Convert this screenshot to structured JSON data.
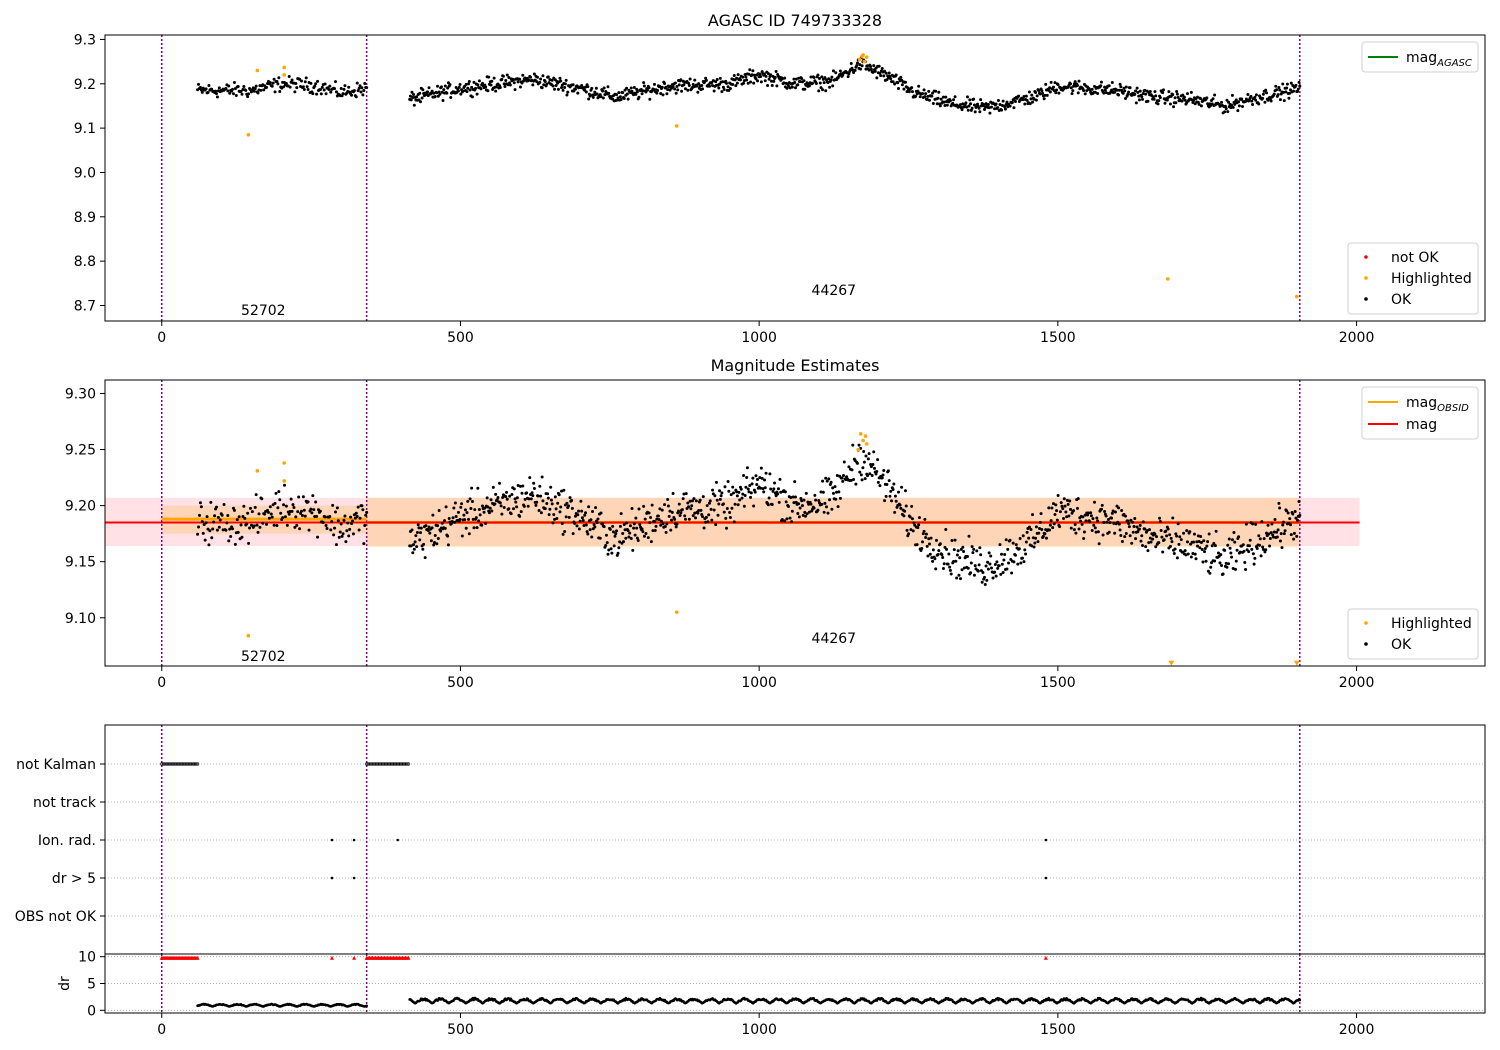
{
  "chart_data": [
    {
      "type": "scatter",
      "title": "AGASC ID 749733328",
      "xlim": [
        -95,
        2215
      ],
      "ylim": [
        8.665,
        9.31
      ],
      "xticks": [
        0,
        500,
        1000,
        1500,
        2000
      ],
      "yticks": [
        8.7,
        8.8,
        8.9,
        9.0,
        9.1,
        9.2,
        9.3
      ],
      "ytick_labels": [
        "8.7",
        "8.8",
        "8.9",
        "9.0",
        "9.1",
        "9.2",
        "9.3"
      ],
      "vlines": [
        0,
        343,
        1905
      ],
      "annotations": [
        {
          "text": "52702",
          "x": 170,
          "y": 8.69
        },
        {
          "text": "44267",
          "x": 1125,
          "y": 8.735
        }
      ],
      "legend_lines": {
        "position": "upper right",
        "entries": [
          {
            "name": "mag_AGASC",
            "base": "mag",
            "sub": "AGASC",
            "color": "#008000"
          }
        ]
      },
      "legend_points": {
        "position": "lower right",
        "entries": [
          {
            "name": "not OK",
            "color": "#ff0000"
          },
          {
            "name": "Highlighted",
            "color": "#ffa500"
          },
          {
            "name": "OK",
            "color": "#000000"
          }
        ]
      },
      "series": [
        {
          "name": "OK",
          "color": "#000000",
          "segments": [
            {
              "x0": 60,
              "x1": 343,
              "n": 180,
              "level": [
                [
                  60,
                  9.185
                ],
                [
                  150,
                  9.185
                ],
                [
                  200,
                  9.2
                ],
                [
                  260,
                  9.195
                ],
                [
                  300,
                  9.18
                ],
                [
                  343,
                  9.19
                ]
              ],
              "noise": 0.008
            },
            {
              "x0": 415,
              "x1": 1905,
              "n": 1150,
              "level": [
                [
                  415,
                  9.165
                ],
                [
                  500,
                  9.19
                ],
                [
                  560,
                  9.2
                ],
                [
                  620,
                  9.21
                ],
                [
                  700,
                  9.19
                ],
                [
                  760,
                  9.17
                ],
                [
                  850,
                  9.195
                ],
                [
                  950,
                  9.2
                ],
                [
                  1000,
                  9.22
                ],
                [
                  1060,
                  9.2
                ],
                [
                  1120,
                  9.205
                ],
                [
                  1170,
                  9.245
                ],
                [
                  1210,
                  9.22
                ],
                [
                  1260,
                  9.18
                ],
                [
                  1320,
                  9.155
                ],
                [
                  1380,
                  9.145
                ],
                [
                  1460,
                  9.17
                ],
                [
                  1500,
                  9.195
                ],
                [
                  1600,
                  9.185
                ],
                [
                  1660,
                  9.17
                ],
                [
                  1720,
                  9.165
                ],
                [
                  1780,
                  9.15
                ],
                [
                  1820,
                  9.165
                ],
                [
                  1905,
                  9.19
                ]
              ],
              "noise": 0.008
            }
          ]
        },
        {
          "name": "Highlighted",
          "color": "#ffa500",
          "points": [
            [
              145,
              9.085
            ],
            [
              160,
              9.23
            ],
            [
              205,
              9.237
            ],
            [
              205,
              9.22
            ],
            [
              862,
              9.105
            ],
            [
              1168,
              9.255
            ],
            [
              1172,
              9.262
            ],
            [
              1176,
              9.25
            ],
            [
              1180,
              9.26
            ],
            [
              1174,
              9.265
            ],
            [
              1684,
              8.76
            ],
            [
              1900,
              8.72
            ]
          ]
        }
      ]
    },
    {
      "type": "scatter",
      "title": "Magnitude Estimates",
      "xlim": [
        -95,
        2215
      ],
      "ylim": [
        9.057,
        9.312
      ],
      "xticks": [
        0,
        500,
        1000,
        1500,
        2000
      ],
      "yticks": [
        9.1,
        9.15,
        9.2,
        9.25,
        9.3
      ],
      "ytick_labels": [
        "9.10",
        "9.15",
        "9.20",
        "9.25",
        "9.30"
      ],
      "vlines": [
        0,
        343,
        1905
      ],
      "bands": [
        {
          "x0": -95,
          "x1": 2005,
          "y0": 9.164,
          "y1": 9.207,
          "color": "#ff9aac",
          "opacity": 0.3
        },
        {
          "x0": 0,
          "x1": 343,
          "y0": 9.175,
          "y1": 9.2,
          "color": "#ffa500",
          "opacity": 0.2
        },
        {
          "x0": 343,
          "x1": 1905,
          "y0": 9.163,
          "y1": 9.207,
          "color": "#ffa500",
          "opacity": 0.2
        }
      ],
      "lines": [
        {
          "name": "mag_OBSID",
          "color": "#ffa500",
          "width": 3,
          "segments": [
            [
              0,
              343,
              9.188
            ],
            [
              343,
              1905,
              9.185
            ]
          ]
        },
        {
          "name": "mag",
          "color": "#ff0000",
          "width": 2,
          "segments": [
            [
              -95,
              2005,
              9.185
            ]
          ]
        }
      ],
      "annotations": [
        {
          "text": "52702",
          "x": 170,
          "y": 9.066
        },
        {
          "text": "44267",
          "x": 1125,
          "y": 9.082
        }
      ],
      "legend_lines": {
        "position": "upper right",
        "entries": [
          {
            "name": "mag_OBSID",
            "base": "mag",
            "sub": "OBSID",
            "color": "#ffa500"
          },
          {
            "name": "mag",
            "base": "mag",
            "sub": "",
            "color": "#ff0000"
          }
        ]
      },
      "legend_points": {
        "position": "lower right",
        "entries": [
          {
            "name": "Highlighted",
            "color": "#ffa500"
          },
          {
            "name": "OK",
            "color": "#000000"
          }
        ]
      },
      "series": [
        {
          "name": "OK",
          "color": "#000000",
          "segments": [
            {
              "x0": 60,
              "x1": 343,
              "n": 180,
              "level": [
                [
                  60,
                  9.185
                ],
                [
                  150,
                  9.185
                ],
                [
                  200,
                  9.2
                ],
                [
                  260,
                  9.195
                ],
                [
                  300,
                  9.18
                ],
                [
                  343,
                  9.19
                ]
              ],
              "noise": 0.009
            },
            {
              "x0": 415,
              "x1": 1905,
              "n": 1150,
              "level": [
                [
                  415,
                  9.165
                ],
                [
                  500,
                  9.19
                ],
                [
                  560,
                  9.2
                ],
                [
                  620,
                  9.21
                ],
                [
                  700,
                  9.19
                ],
                [
                  760,
                  9.17
                ],
                [
                  850,
                  9.195
                ],
                [
                  950,
                  9.2
                ],
                [
                  1000,
                  9.22
                ],
                [
                  1060,
                  9.2
                ],
                [
                  1120,
                  9.205
                ],
                [
                  1170,
                  9.245
                ],
                [
                  1210,
                  9.22
                ],
                [
                  1260,
                  9.18
                ],
                [
                  1320,
                  9.155
                ],
                [
                  1380,
                  9.145
                ],
                [
                  1460,
                  9.17
                ],
                [
                  1500,
                  9.195
                ],
                [
                  1600,
                  9.185
                ],
                [
                  1660,
                  9.17
                ],
                [
                  1720,
                  9.165
                ],
                [
                  1780,
                  9.15
                ],
                [
                  1820,
                  9.165
                ],
                [
                  1905,
                  9.19
                ]
              ],
              "noise": 0.009
            }
          ]
        },
        {
          "name": "Highlighted",
          "color": "#ffa500",
          "points": [
            [
              145,
              9.084
            ],
            [
              160,
              9.231
            ],
            [
              205,
              9.238
            ],
            [
              205,
              9.222
            ],
            [
              862,
              9.105
            ],
            [
              1166,
              9.25
            ],
            [
              1170,
              9.264
            ],
            [
              1174,
              9.258
            ],
            [
              1178,
              9.262
            ],
            [
              1180,
              9.255
            ]
          ]
        },
        {
          "name": "Highlighted (off scale)",
          "color": "#ffa500",
          "marker": "triangle-down",
          "points": [
            [
              1690,
              9.059
            ],
            [
              1900,
              9.059
            ]
          ]
        }
      ]
    },
    {
      "type": "scatter",
      "title": "",
      "xlim": [
        -95,
        2215
      ],
      "categories": [
        "not Kalman",
        "not track",
        "Ion. rad.",
        "dr > 5",
        "OBS not OK"
      ],
      "vlines": [
        0,
        343,
        1905
      ],
      "flags": [
        {
          "category": "not Kalman",
          "ranges": [
            [
              0,
              60
            ],
            [
              343,
              415
            ]
          ]
        },
        {
          "category": "not track",
          "ranges": []
        },
        {
          "category": "Ion. rad.",
          "points": [
            285,
            322,
            395,
            1480
          ]
        },
        {
          "category": "dr > 5",
          "points": [
            285,
            322,
            1480
          ]
        },
        {
          "category": "OBS not OK",
          "ranges": []
        }
      ]
    },
    {
      "type": "scatter",
      "title": "",
      "ylabel": "dr",
      "xlim": [
        -95,
        2215
      ],
      "ylim": [
        -0.5,
        10.5
      ],
      "xticks": [
        0,
        500,
        1000,
        1500,
        2000
      ],
      "yticks": [
        0,
        5,
        10
      ],
      "ytick_labels": [
        "0",
        "5",
        "10"
      ],
      "vlines": [
        0,
        343,
        1905
      ],
      "clipped_marker": {
        "y": 9.8,
        "color": "#ff0000",
        "ranges": [
          [
            0,
            60
          ],
          [
            343,
            415
          ]
        ],
        "points": [
          285,
          322,
          1480
        ]
      },
      "series": [
        {
          "name": "dr",
          "color": "#000000",
          "segments": [
            {
              "x0": 60,
              "x1": 343,
              "n": 200,
              "base": 0.7,
              "amp": 0.5
            },
            {
              "x0": 415,
              "x1": 1905,
              "n": 1100,
              "base": 1.3,
              "amp": 1.0
            }
          ]
        }
      ]
    }
  ]
}
